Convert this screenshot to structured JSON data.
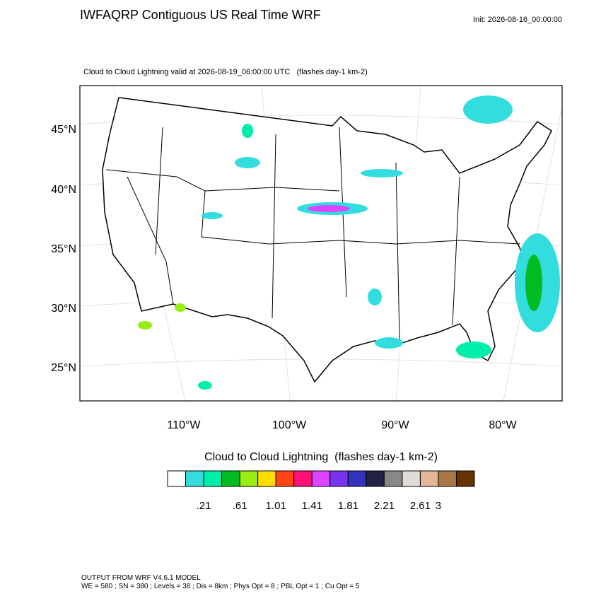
{
  "header": {
    "title": "IWFAQRP Contiguous US Real Time WRF",
    "init": "Init: 2026-08-16_00:00:00"
  },
  "map": {
    "subtitle": "Cloud to Cloud Lightning valid at 2026-08-19_06:00:00 UTC   (flashes day-1 km-2)",
    "lat_labels": [
      "45°N",
      "40°N",
      "35°N",
      "30°N",
      "25°N"
    ],
    "lon_labels": [
      "110°W",
      "100°W",
      "90°W",
      "80°W"
    ]
  },
  "colorbar": {
    "title": "Cloud to Cloud Lightning  (flashes day-1 km-2)",
    "colors": [
      "#ffffff",
      "#33dddd",
      "#00eeaa",
      "#00bb22",
      "#99ee11",
      "#ffdd00",
      "#ff4411",
      "#ff1177",
      "#dd44ff",
      "#7733ee",
      "#3333bb",
      "#222244",
      "#888888",
      "#e0ddd8",
      "#e4b896",
      "#aa7744",
      "#663300"
    ],
    "labels": [
      ".21",
      ".61",
      "1.01",
      "1.41",
      "1.81",
      "2.21",
      "2.61",
      "3"
    ]
  },
  "footer": {
    "lines": [
      "OUTPUT FROM WRF V4.6.1 MODEL",
      "WE = 580 ; SN = 380 ; Levels = 38 ; Dis = 8km ; Phys Opt = 8 ; PBL Opt = 1 ; Cu Opt = 5"
    ]
  }
}
